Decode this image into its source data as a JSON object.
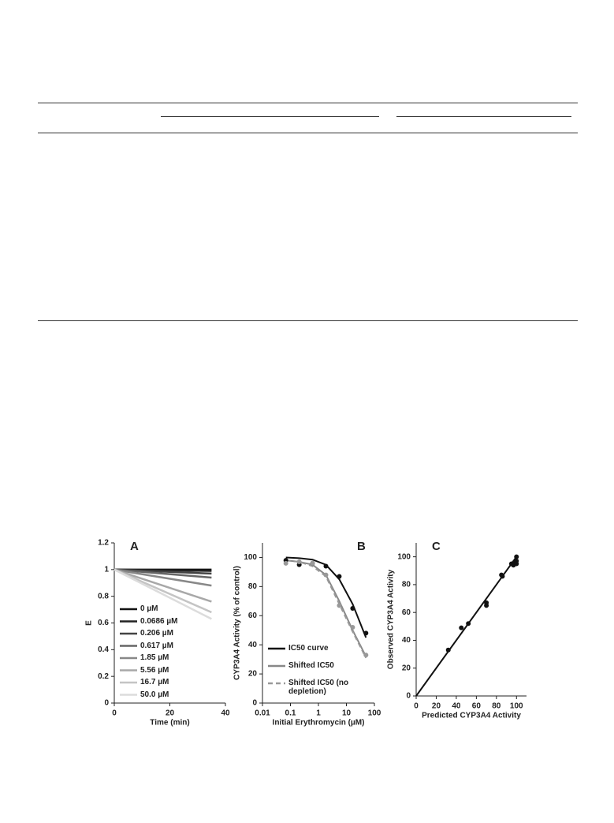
{
  "chart_data": [
    {
      "type": "line",
      "label": "A",
      "xlabel": "Time (min)",
      "ylabel": "E",
      "xlim": [
        0,
        40
      ],
      "xticks": [
        0,
        20,
        40
      ],
      "ylim": [
        0,
        1.2
      ],
      "yticks": [
        0,
        0.2,
        0.4,
        0.6,
        0.8,
        1,
        1.2
      ],
      "series": [
        {
          "name": "0 µM",
          "color": "#111111",
          "x": [
            0,
            35
          ],
          "values": [
            1,
            1
          ]
        },
        {
          "name": "0.0686 µM",
          "color": "#222222",
          "x": [
            0,
            35
          ],
          "values": [
            1,
            0.99
          ]
        },
        {
          "name": "0.206 µM",
          "color": "#444444",
          "x": [
            0,
            35
          ],
          "values": [
            1,
            0.97
          ]
        },
        {
          "name": "0.617 µM",
          "color": "#666666",
          "x": [
            0,
            35
          ],
          "values": [
            1,
            0.94
          ]
        },
        {
          "name": "1.85 µM",
          "color": "#888888",
          "x": [
            0,
            35
          ],
          "values": [
            1,
            0.88
          ]
        },
        {
          "name": "5.56 µM",
          "color": "#a8a8a8",
          "x": [
            0,
            35
          ],
          "values": [
            1,
            0.76
          ]
        },
        {
          "name": "16.7 µM",
          "color": "#c4c4c4",
          "x": [
            0,
            35
          ],
          "values": [
            1,
            0.68
          ]
        },
        {
          "name": "50.0 µM",
          "color": "#dcdcdc",
          "x": [
            0,
            35
          ],
          "values": [
            1,
            0.63
          ]
        }
      ]
    },
    {
      "type": "scatter",
      "label": "B",
      "xlabel": "Initial Erythromycin (µM)",
      "ylabel": "CYP3A4 Activity (% of control)",
      "log_x": true,
      "xlim": [
        0.01,
        100
      ],
      "xticks": [
        0.01,
        0.1,
        1,
        10,
        100
      ],
      "ylim": [
        0,
        110
      ],
      "yticks": [
        0,
        20,
        40,
        60,
        80,
        100
      ],
      "series": [
        {
          "name": "IC50 curve",
          "color": "#111111",
          "x": [
            0.0686,
            0.206,
            0.617,
            1.85,
            5.56,
            16.7,
            50
          ],
          "values": [
            100,
            99.5,
            98.5,
            95,
            85,
            68,
            45
          ]
        },
        {
          "name": "Shifted IC50",
          "color": "#888888",
          "x": [
            0.0686,
            0.206,
            0.617,
            1.85,
            5.56,
            16.7,
            50
          ],
          "values": [
            98,
            97,
            95,
            88,
            70,
            50,
            32
          ]
        },
        {
          "name": "Shifted IC50 (no depletion)",
          "color": "#999999",
          "dashed": true,
          "x": [
            0.0686,
            0.206,
            0.617,
            1.85,
            5.56,
            16.7,
            50
          ],
          "values": [
            98,
            97,
            94,
            87,
            68,
            49,
            31
          ]
        }
      ],
      "points": [
        {
          "color": "#111111",
          "x": [
            0.0686,
            0.206,
            0.617,
            1.85,
            5.56,
            16.7,
            50
          ],
          "values": [
            98,
            95,
            96,
            94,
            87,
            65,
            48
          ]
        },
        {
          "color": "#999999",
          "x": [
            0.0686,
            0.206,
            0.617,
            1.85,
            5.56,
            16.7,
            50
          ],
          "values": [
            96,
            97,
            96,
            88,
            67,
            52,
            33
          ]
        }
      ]
    },
    {
      "type": "scatter",
      "label": "C",
      "xlabel": "Predicted CYP3A4 Activity",
      "ylabel": "Observed CYP3A4 Activity",
      "xlim": [
        0,
        110
      ],
      "xticks": [
        0,
        20,
        40,
        60,
        80,
        100
      ],
      "ylim": [
        0,
        110
      ],
      "yticks": [
        0,
        20,
        40,
        60,
        80,
        100
      ],
      "series": [
        {
          "color": "#111111",
          "x": [
            0,
            100
          ],
          "values": [
            0,
            100
          ]
        }
      ],
      "points": [
        {
          "color": "#111111",
          "x": [
            32,
            45,
            52,
            70,
            70,
            85,
            86,
            95,
            97,
            98,
            100,
            100,
            100
          ],
          "values": [
            33,
            49,
            52,
            65,
            67,
            87,
            86,
            95,
            94,
            96,
            97,
            100,
            95
          ]
        }
      ]
    }
  ]
}
